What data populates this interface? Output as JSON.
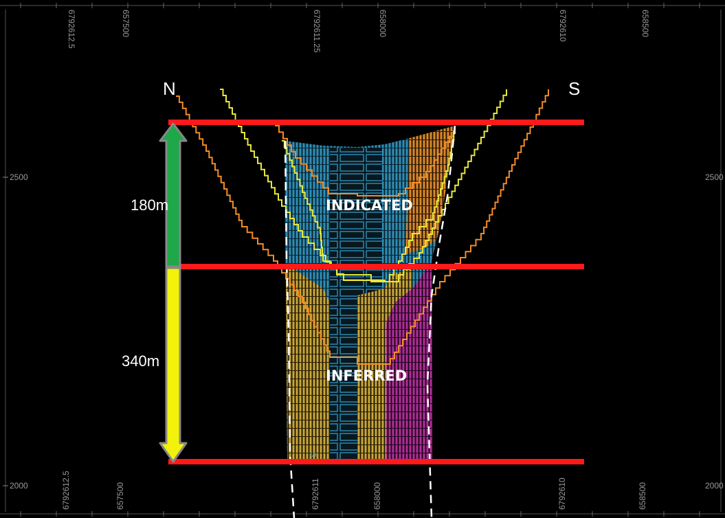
{
  "top_axis": [
    "6792612.5",
    "657500",
    "6792611.25",
    "658000",
    "6792610",
    "658500"
  ],
  "bottom_axis": [
    "6792612.5",
    "657500",
    "6792611",
    "658000",
    "6792610",
    "658500"
  ],
  "elevation": {
    "upper": "2500",
    "lower": "2000"
  },
  "compass": {
    "left": "N",
    "right": "S"
  },
  "dimensions": {
    "indicated_thickness": "180m",
    "inferred_thickness": "340m"
  },
  "zones": {
    "indicated": "INDICATED",
    "inferred": "INFERRED"
  },
  "block_label": "S",
  "colors": {
    "boundary_line": "#ff1a1a",
    "indicated_arrow": "#1fa84a",
    "inferred_arrow": "#f2f20a",
    "arrow_outline": "#888888",
    "shell_orange": "#f28c28",
    "shell_yellow": "#e8e83a",
    "block_blue": "#2f8fb8",
    "block_orange": "#d98a2b",
    "block_gold": "#c9a83a",
    "block_magenta": "#b0309a"
  }
}
